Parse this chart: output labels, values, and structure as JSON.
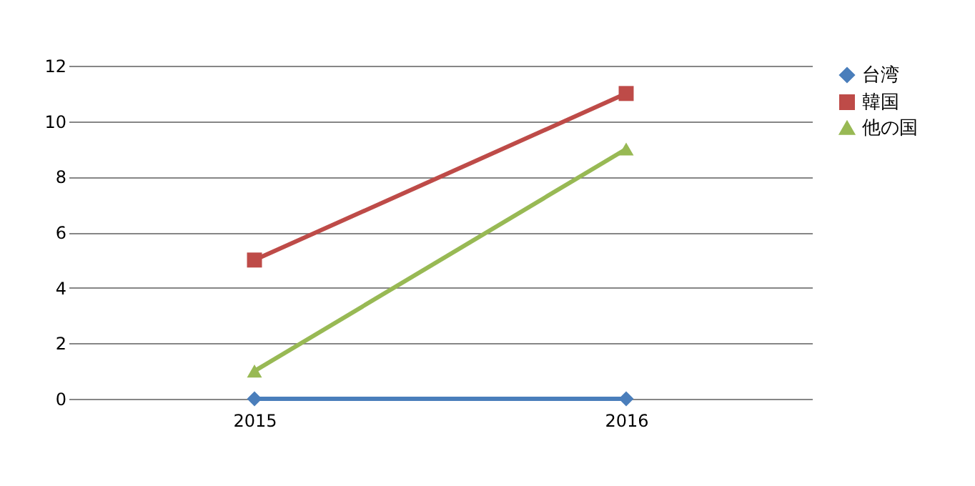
{
  "chart_data": {
    "type": "line",
    "categories": [
      "2015",
      "2016"
    ],
    "series": [
      {
        "name": "台湾",
        "color": "#4a7ebb",
        "values": [
          0,
          0
        ],
        "marker": "diamond"
      },
      {
        "name": "韓国",
        "color": "#be4b48",
        "values": [
          5,
          11
        ],
        "marker": "square"
      },
      {
        "name": "他の国",
        "color": "#98b954",
        "values": [
          1,
          9
        ],
        "marker": "triangle"
      }
    ],
    "ylim": [
      0,
      12
    ],
    "yticks": [
      0,
      2,
      4,
      6,
      8,
      10,
      12
    ],
    "grid": "y",
    "legend": "right",
    "line_style": "solid"
  }
}
